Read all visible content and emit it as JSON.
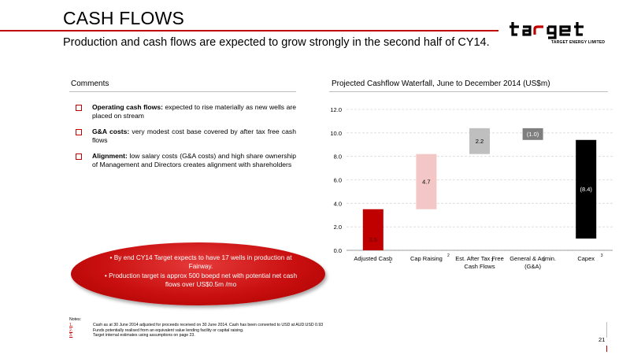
{
  "header": {
    "title": "CASH FLOWS",
    "subtitle": "Production and cash flows are expected to grow strongly in the second half of CY14."
  },
  "logo": {
    "wordmark": "target",
    "tagline": "TARGET ENERGY LIMITED"
  },
  "comments": {
    "heading": "Comments",
    "items": [
      {
        "lead": "Operating cash flows:",
        "text": " expected to rise materially as new wells are placed on stream"
      },
      {
        "lead": "G&A costs:",
        "text": " very modest cost base covered by after tax free cash flows"
      },
      {
        "lead": "Alignment:",
        "text": " low salary costs (G&A costs) and high share ownership of Management and Directors creates alignment with shareholders"
      }
    ]
  },
  "callout": {
    "items": [
      "By end CY14 Target expects to have 17 wells in production at Fairway.",
      "Production target is approx 500 boepd net with potential net cash flows over US$0.5m /mo"
    ]
  },
  "chart_data": {
    "type": "bar",
    "subtype": "waterfall",
    "title": "Projected Cashflow Waterfall, June to December 2014 (US$m)",
    "categories": [
      {
        "label": [
          "Adjusted Cash"
        ],
        "note": "1"
      },
      {
        "label": [
          "Cap Raising"
        ],
        "note": "2"
      },
      {
        "label": [
          "Est. After Tax Free",
          "Cash Flows"
        ],
        "note": "3"
      },
      {
        "label": [
          "General & Admin.",
          "(G&A)"
        ],
        "note": "3"
      },
      {
        "label": [
          "Capex"
        ],
        "note": "3"
      }
    ],
    "bars": [
      {
        "start": 0.0,
        "end": 3.5,
        "label": "3.5",
        "color": "#c00000"
      },
      {
        "start": 3.5,
        "end": 8.2,
        "label": "4.7",
        "color": "#f4c7c7"
      },
      {
        "start": 8.2,
        "end": 10.4,
        "label": "2.2",
        "color": "#bfbfbf"
      },
      {
        "start": 10.4,
        "end": 9.4,
        "label": "(1.0)",
        "color": "#7f7f7f"
      },
      {
        "start": 9.4,
        "end": 1.0,
        "label": "(8.4)",
        "color": "#000000"
      }
    ],
    "ylim": [
      0,
      12
    ],
    "yticks": [
      "0.0",
      "2.0",
      "4.0",
      "6.0",
      "8.0",
      "10.0",
      "12.0"
    ],
    "grid": true
  },
  "notes": {
    "heading": "Notes:",
    "items": [
      {
        "num": "1.",
        "text": "Cash as at 30 June 2014 adjusted for proceeds received on 30 June 2014. Cash has been converted to USD at AUD:USD 0.93"
      },
      {
        "num": "2.",
        "text": "Funds potentially realised from an equivalent value lending facility or capital raising."
      },
      {
        "num": "3.",
        "text": "Target internal estimates using assumptions on page 23."
      }
    ]
  },
  "footer": {
    "page_number": "21"
  }
}
